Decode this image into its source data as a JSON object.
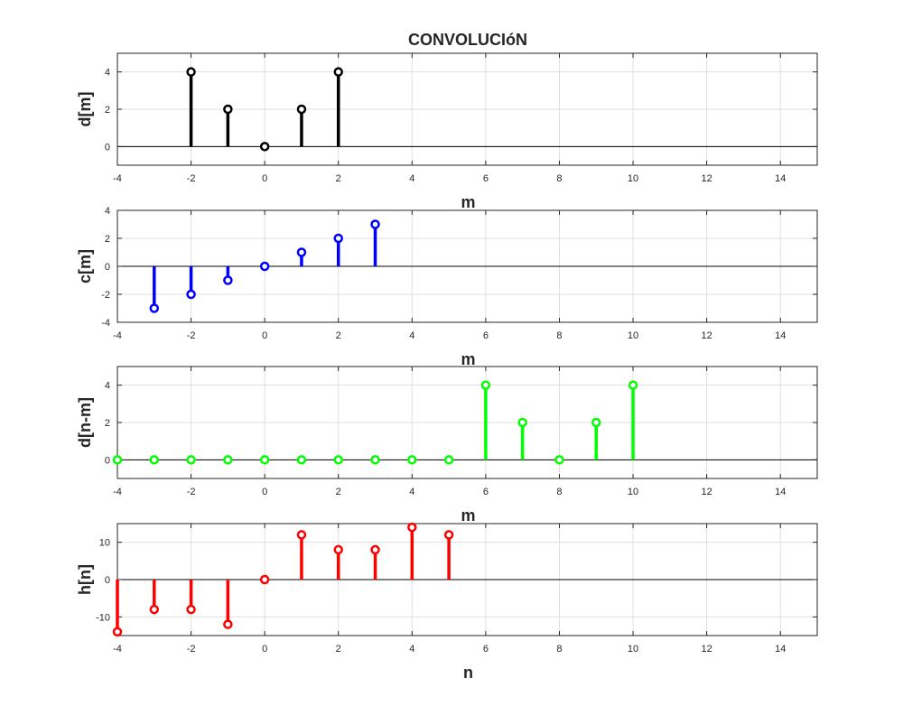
{
  "figure_title": "CONVOLUCIóN",
  "chart_data": [
    {
      "type": "stem",
      "ylabel": "d[m]",
      "xlabel": "m",
      "color": "#000000",
      "xlim": [
        -4,
        15
      ],
      "ylim": [
        -1,
        5
      ],
      "xticks": [
        -4,
        -2,
        0,
        2,
        4,
        6,
        8,
        10,
        12,
        14
      ],
      "yticks": [
        0,
        2,
        4
      ],
      "x": [
        -2,
        -1,
        0,
        1,
        2
      ],
      "y": [
        4,
        2,
        0,
        2,
        4
      ]
    },
    {
      "type": "stem",
      "ylabel": "c[m]",
      "xlabel": "m",
      "color": "#0000ff",
      "xlim": [
        -4,
        15
      ],
      "ylim": [
        -4,
        4
      ],
      "xticks": [
        -4,
        -2,
        0,
        2,
        4,
        6,
        8,
        10,
        12,
        14
      ],
      "yticks": [
        -4,
        -2,
        0,
        2,
        4
      ],
      "x": [
        -3,
        -2,
        -1,
        0,
        1,
        2,
        3
      ],
      "y": [
        -3,
        -2,
        -1,
        0,
        1,
        2,
        3
      ]
    },
    {
      "type": "stem",
      "ylabel": "d[n-m]",
      "xlabel": "m",
      "color": "#00ff00",
      "xlim": [
        -4,
        15
      ],
      "ylim": [
        -1,
        5
      ],
      "xticks": [
        -4,
        -2,
        0,
        2,
        4,
        6,
        8,
        10,
        12,
        14
      ],
      "yticks": [
        0,
        2,
        4
      ],
      "x": [
        -4,
        -3,
        -2,
        -1,
        0,
        1,
        2,
        3,
        4,
        5,
        6,
        7,
        8,
        9,
        10
      ],
      "y": [
        0,
        0,
        0,
        0,
        0,
        0,
        0,
        0,
        0,
        0,
        4,
        2,
        0,
        2,
        4
      ]
    },
    {
      "type": "stem",
      "ylabel": "h[n]",
      "xlabel": "n",
      "color": "#ff0000",
      "xlim": [
        -4,
        15
      ],
      "ylim": [
        -15,
        15
      ],
      "xticks": [
        -4,
        -2,
        0,
        2,
        4,
        6,
        8,
        10,
        12,
        14
      ],
      "yticks": [
        -10,
        0,
        10
      ],
      "x": [
        -4,
        -3,
        -2,
        -1,
        0,
        1,
        2,
        3,
        4,
        5
      ],
      "y": [
        -14,
        -8,
        -8,
        -12,
        0,
        12,
        8,
        8,
        14,
        12
      ]
    }
  ]
}
